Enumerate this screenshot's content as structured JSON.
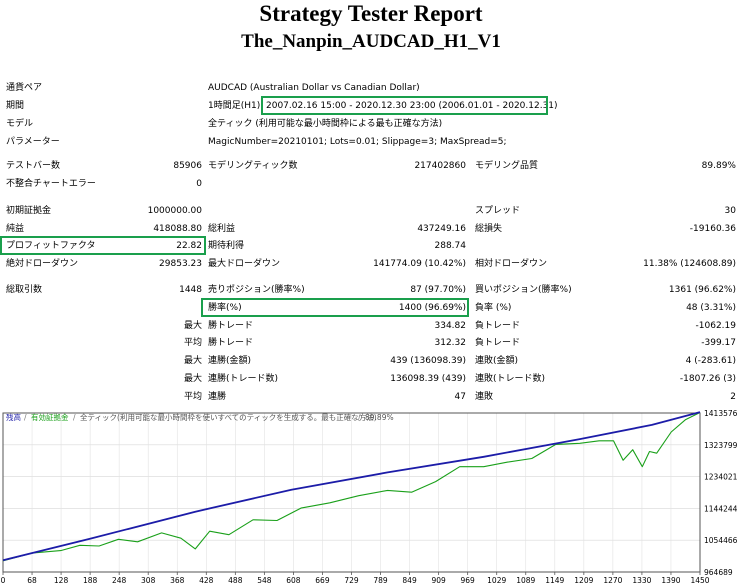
{
  "header": {
    "title": "Strategy Tester Report",
    "subtitle": "The_Nanpin_AUDCAD_H1_V1"
  },
  "info": {
    "symbol_label": "通貨ペア",
    "symbol_value": "AUDCAD (Australian Dollar vs Canadian Dollar)",
    "period_label": "期間",
    "period_tf": "1時間足(H1)",
    "period_value": "2007.02.16 15:00 - 2020.12.30 23:00 (2006.01.01 - 2020.12.31)",
    "model_label": "モデル",
    "model_value": "全ティック (利用可能な最小時間枠による最も正確な方法)",
    "params_label": "パラメーター",
    "params_value": "MagicNumber=20210101; Lots=0.01; Slippage=3; MaxSpread=5;"
  },
  "stats": {
    "bars_label": "テストバー数",
    "bars_value": "85906",
    "ticks_label": "モデリングティック数",
    "ticks_value": "217402860",
    "quality_label": "モデリング品質",
    "quality_value": "89.89%",
    "mismatch_label": "不整合チャートエラー",
    "mismatch_value": "0",
    "deposit_label": "初期証拠金",
    "deposit_value": "1000000.00",
    "spread_label": "スプレッド",
    "spread_value": "30",
    "net_label": "純益",
    "net_value": "418088.80",
    "gross_profit_label": "総利益",
    "gross_profit_value": "437249.16",
    "gross_loss_label": "総損失",
    "gross_loss_value": "-19160.36",
    "pf_label": "プロフィットファクタ",
    "pf_value": "22.82",
    "expected_label": "期待利得",
    "expected_value": "288.74",
    "abs_dd_label": "絶対ドローダウン",
    "abs_dd_value": "29853.23",
    "max_dd_label": "最大ドローダウン",
    "max_dd_value": "141774.09 (10.42%)",
    "rel_dd_label": "相対ドローダウン",
    "rel_dd_value": "11.38% (124608.89)",
    "trades_label": "総取引数",
    "trades_value": "1448",
    "short_label": "売りポジション(勝率%)",
    "short_value": "87 (97.70%)",
    "long_label": "買いポジション(勝率%)",
    "long_value": "1361 (96.62%)",
    "win_label": "勝率(%)",
    "win_value": "1400 (96.69%)",
    "loss_label": "負率 (%)",
    "loss_value": "48 (3.31%)",
    "max_label": "最大",
    "avg_label": "平均",
    "win_trade_label": "勝トレード",
    "loss_trade_label": "負トレード",
    "largest_win": "334.82",
    "largest_loss": "-1062.19",
    "avg_win": "312.32",
    "avg_loss": "-399.17",
    "cons_win_amt_label": "連勝(金額)",
    "cons_win_amt_value": "439 (136098.39)",
    "cons_loss_amt_label": "連敗(金額)",
    "cons_loss_amt_value": "4 (-283.61)",
    "cons_win_cnt_label": "連勝(トレード数)",
    "cons_win_cnt_value": "136098.39 (439)",
    "cons_loss_cnt_label": "連敗(トレード数)",
    "cons_loss_cnt_value": "-1807.26 (3)",
    "avg_cons_win_label": "連勝",
    "avg_cons_win_value": "47",
    "avg_cons_loss_label": "連敗",
    "avg_cons_loss_value": "2"
  },
  "chart_data": {
    "type": "line",
    "legend_balance": "残高",
    "legend_equity": "有効証拠金",
    "legend_desc": "全ティック(利用可能な最小時間枠を使いすべてのティックを生成する。最も正確な方法)",
    "legend_quality": "89.89%",
    "x_ticks": [
      "0",
      "68",
      "128",
      "188",
      "248",
      "308",
      "368",
      "428",
      "488",
      "548",
      "608",
      "669",
      "729",
      "789",
      "849",
      "909",
      "969",
      "1029",
      "1089",
      "1149",
      "1209",
      "1270",
      "1330",
      "1390",
      "1450"
    ],
    "y_ticks": [
      "1413576",
      "1323799",
      "1234021",
      "1144244",
      "1054466",
      "964689"
    ],
    "xlim": [
      0,
      1450
    ],
    "ylim": [
      964689,
      1413576
    ],
    "series": [
      {
        "name": "残高",
        "color": "#1c1ca8",
        "x": [
          0,
          180,
          400,
          600,
          800,
          1000,
          1200,
          1350,
          1450
        ],
        "y": [
          998000,
          1058000,
          1135000,
          1197000,
          1246000,
          1290000,
          1340000,
          1380000,
          1416000
        ]
      },
      {
        "name": "有効証拠金",
        "color": "#1aa01a",
        "x": [
          0,
          60,
          120,
          160,
          200,
          240,
          280,
          330,
          370,
          400,
          430,
          470,
          520,
          570,
          620,
          680,
          740,
          800,
          850,
          900,
          950,
          1000,
          1050,
          1100,
          1150,
          1200,
          1240,
          1270,
          1290,
          1310,
          1330,
          1345,
          1360,
          1390,
          1420,
          1450
        ],
        "y": [
          996000,
          1018000,
          1025000,
          1040000,
          1038000,
          1057000,
          1050000,
          1075000,
          1060000,
          1030000,
          1080000,
          1070000,
          1112000,
          1110000,
          1145000,
          1160000,
          1180000,
          1195000,
          1190000,
          1220000,
          1262000,
          1262000,
          1275000,
          1285000,
          1325000,
          1328000,
          1335000,
          1335000,
          1280000,
          1310000,
          1262000,
          1305000,
          1300000,
          1360000,
          1395000,
          1415000
        ]
      }
    ]
  }
}
